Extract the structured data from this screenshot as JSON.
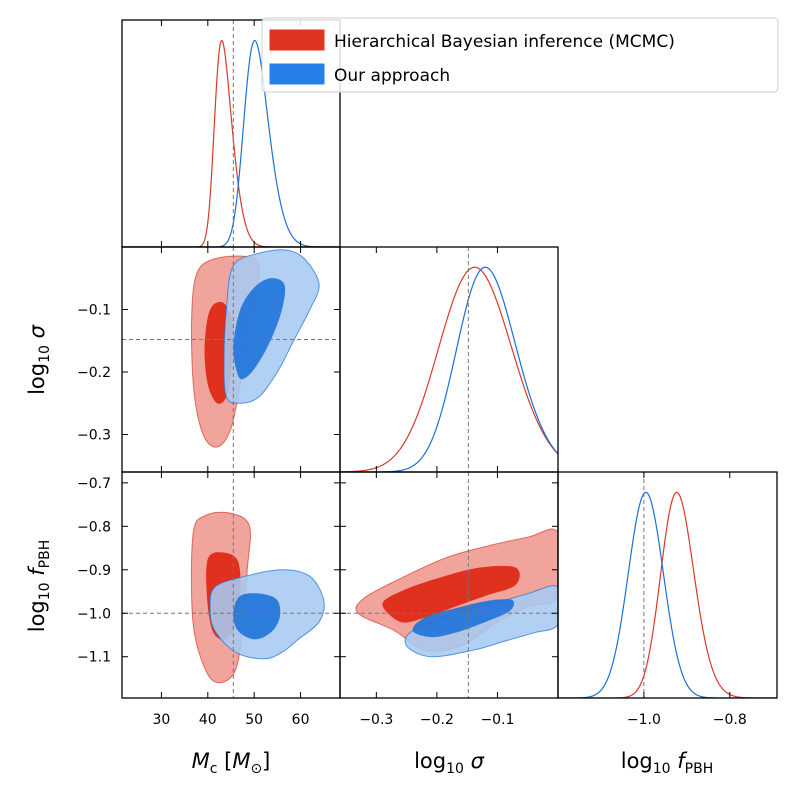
{
  "chart_data": {
    "type": "corner",
    "parameters": [
      {
        "id": "Mc",
        "label_main": "M",
        "label_sub": "c",
        "label_unit": " [M",
        "label_unit_sub": "⊙",
        "label_close": "]",
        "range": [
          21.5,
          68.5
        ],
        "ticks": [
          30,
          40,
          50,
          60
        ],
        "tick_labels": [
          "30",
          "40",
          "50",
          "60"
        ],
        "truth": 45.5
      },
      {
        "id": "logsigma",
        "label_main": "log",
        "label_sub": "10",
        "label_sym": " σ",
        "range": [
          -0.36,
          0.0
        ],
        "ticks": [
          -0.3,
          -0.2,
          -0.1
        ],
        "tick_labels": [
          "−0.3",
          "−0.2",
          "−0.1"
        ],
        "truth": -0.148
      },
      {
        "id": "logfPBH",
        "label_main": "log",
        "label_sub": "10",
        "label_sym": " f",
        "label_sym_sub": "PBH",
        "range": [
          -1.195,
          -0.675
        ],
        "ticks": [
          -1.1,
          -1.0,
          -0.9,
          -0.8,
          -0.7
        ],
        "tick_labels": [
          "−1.1",
          "−1.0",
          "−0.9",
          "−0.8",
          "−0.7"
        ],
        "diag_ticks": [
          -1.0,
          -0.8
        ],
        "diag_tick_labels": [
          "−1.0",
          "−0.8"
        ],
        "diag_range": [
          -1.2,
          -0.69
        ],
        "truth": -1.0
      }
    ],
    "legend": {
      "position": "upper-right",
      "entries": [
        {
          "label": "Hierarchical Bayesian inference (MCMC)",
          "color": "#e03322"
        },
        {
          "label": "Our approach",
          "color": "#2580e8"
        }
      ]
    },
    "series": [
      {
        "name": "Hierarchical Bayesian inference (MCMC)",
        "color": "#d93a28",
        "fill_outer": "#f0a49c",
        "fill_inner": "#e0301e",
        "marginals": [
          {
            "mean": 41.5,
            "sd": 3.0,
            "skew": 2.5
          },
          {
            "mean": -0.17,
            "sd": 0.07,
            "skew": 0.8
          },
          {
            "mean": -0.95,
            "sd": 0.05,
            "skew": 1.2
          }
        ],
        "contours": {
          "Mc_logsigma": {
            "outer": [
              [
                42,
                -0.32
              ],
              [
                39,
                -0.3
              ],
              [
                37,
                -0.23
              ],
              [
                36.5,
                -0.12
              ],
              [
                37.5,
                -0.045
              ],
              [
                41,
                -0.02
              ],
              [
                48,
                -0.015
              ],
              [
                51,
                -0.03
              ],
              [
                50,
                -0.1
              ],
              [
                47.5,
                -0.2
              ],
              [
                45,
                -0.29
              ]
            ],
            "inner": [
              [
                42,
                -0.25
              ],
              [
                40,
                -0.22
              ],
              [
                39.3,
                -0.16
              ],
              [
                40.5,
                -0.1
              ],
              [
                43.5,
                -0.09
              ],
              [
                45.5,
                -0.13
              ],
              [
                45,
                -0.2
              ],
              [
                44,
                -0.24
              ]
            ]
          },
          "Mc_logfPBH": {
            "outer": [
              [
                42.5,
                -1.16
              ],
              [
                39.5,
                -1.13
              ],
              [
                36.8,
                -1.02
              ],
              [
                36.8,
                -0.82
              ],
              [
                39.5,
                -0.775
              ],
              [
                45,
                -0.77
              ],
              [
                49,
                -0.8
              ],
              [
                48.5,
                -0.9
              ],
              [
                47.5,
                -1.03
              ],
              [
                46,
                -1.13
              ]
            ],
            "inner": [
              [
                43.5,
                -1.06
              ],
              [
                41,
                -1.04
              ],
              [
                39.8,
                -0.96
              ],
              [
                40,
                -0.875
              ],
              [
                43,
                -0.86
              ],
              [
                46.5,
                -0.88
              ],
              [
                47,
                -0.96
              ],
              [
                46,
                -1.03
              ]
            ]
          },
          "logsigma_logfPBH": {
            "outer": [
              [
                -0.27,
                -1.04
              ],
              [
                -0.33,
                -1.0
              ],
              [
                -0.32,
                -0.965
              ],
              [
                -0.26,
                -0.92
              ],
              [
                -0.19,
                -0.875
              ],
              [
                -0.13,
                -0.85
              ],
              [
                -0.05,
                -0.825
              ],
              [
                0.0,
                -0.815
              ],
              [
                0.0,
                -0.96
              ],
              [
                -0.05,
                -0.985
              ],
              [
                -0.1,
                -1.02
              ],
              [
                -0.16,
                -1.075
              ],
              [
                -0.22,
                -1.085
              ]
            ],
            "inner": [
              [
                -0.26,
                -1.02
              ],
              [
                -0.29,
                -0.98
              ],
              [
                -0.26,
                -0.95
              ],
              [
                -0.2,
                -0.92
              ],
              [
                -0.13,
                -0.895
              ],
              [
                -0.07,
                -0.895
              ],
              [
                -0.07,
                -0.935
              ],
              [
                -0.12,
                -0.96
              ],
              [
                -0.17,
                -0.985
              ],
              [
                -0.22,
                -1.01
              ]
            ]
          }
        }
      },
      {
        "name": "Our approach",
        "color": "#1a70d8",
        "fill_outer": "#a6c9f2",
        "fill_inner": "#2275d9",
        "marginals": [
          {
            "mean": 48.0,
            "sd": 4.0,
            "skew": 2.0
          },
          {
            "mean": -0.155,
            "sd": 0.065,
            "skew": 1.3
          },
          {
            "mean": -1.005,
            "sd": 0.042,
            "skew": 0.3
          }
        ],
        "contours": {
          "Mc_logsigma": {
            "outer": [
              [
                47,
                -0.25
              ],
              [
                44,
                -0.24
              ],
              [
                43.5,
                -0.18
              ],
              [
                44,
                -0.1
              ],
              [
                45.5,
                -0.03
              ],
              [
                51,
                -0.01
              ],
              [
                57,
                -0.005
              ],
              [
                61,
                -0.02
              ],
              [
                64,
                -0.06
              ],
              [
                62,
                -0.1
              ],
              [
                58.5,
                -0.15
              ],
              [
                55,
                -0.2
              ],
              [
                51,
                -0.24
              ]
            ],
            "inner": [
              [
                46.5,
                -0.205
              ],
              [
                45.5,
                -0.16
              ],
              [
                47,
                -0.1
              ],
              [
                50,
                -0.065
              ],
              [
                53.5,
                -0.05
              ],
              [
                56.5,
                -0.06
              ],
              [
                56,
                -0.1
              ],
              [
                53.5,
                -0.15
              ],
              [
                50.5,
                -0.19
              ],
              [
                48,
                -0.21
              ]
            ]
          },
          "Mc_logfPBH": {
            "outer": [
              [
                52,
                -1.105
              ],
              [
                46,
                -1.09
              ],
              [
                41.5,
                -1.04
              ],
              [
                40.5,
                -0.99
              ],
              [
                41.5,
                -0.94
              ],
              [
                48,
                -0.915
              ],
              [
                56,
                -0.9
              ],
              [
                62,
                -0.915
              ],
              [
                65,
                -0.97
              ],
              [
                64,
                -1.02
              ],
              [
                59.5,
                -1.06
              ],
              [
                56,
                -1.09
              ]
            ],
            "inner": [
              [
                50,
                -1.06
              ],
              [
                46.5,
                -1.04
              ],
              [
                45.5,
                -1.0
              ],
              [
                47,
                -0.96
              ],
              [
                51.5,
                -0.955
              ],
              [
                55,
                -0.97
              ],
              [
                55.5,
                -1.01
              ],
              [
                53.5,
                -1.045
              ]
            ]
          },
          "logsigma_logfPBH": {
            "outer": [
              [
                -0.21,
                -1.1
              ],
              [
                -0.25,
                -1.075
              ],
              [
                -0.24,
                -1.04
              ],
              [
                -0.17,
                -1.0
              ],
              [
                -0.1,
                -0.975
              ],
              [
                -0.05,
                -0.955
              ],
              [
                0.0,
                -0.94
              ],
              [
                0.0,
                -1.025
              ],
              [
                -0.04,
                -1.045
              ],
              [
                -0.09,
                -1.065
              ],
              [
                -0.14,
                -1.085
              ]
            ],
            "inner": [
              [
                -0.21,
                -1.055
              ],
              [
                -0.24,
                -1.04
              ],
              [
                -0.22,
                -1.01
              ],
              [
                -0.16,
                -0.985
              ],
              [
                -0.11,
                -0.97
              ],
              [
                -0.075,
                -0.97
              ],
              [
                -0.08,
                -0.995
              ],
              [
                -0.12,
                -1.02
              ],
              [
                -0.17,
                -1.045
              ]
            ]
          }
        }
      }
    ]
  }
}
